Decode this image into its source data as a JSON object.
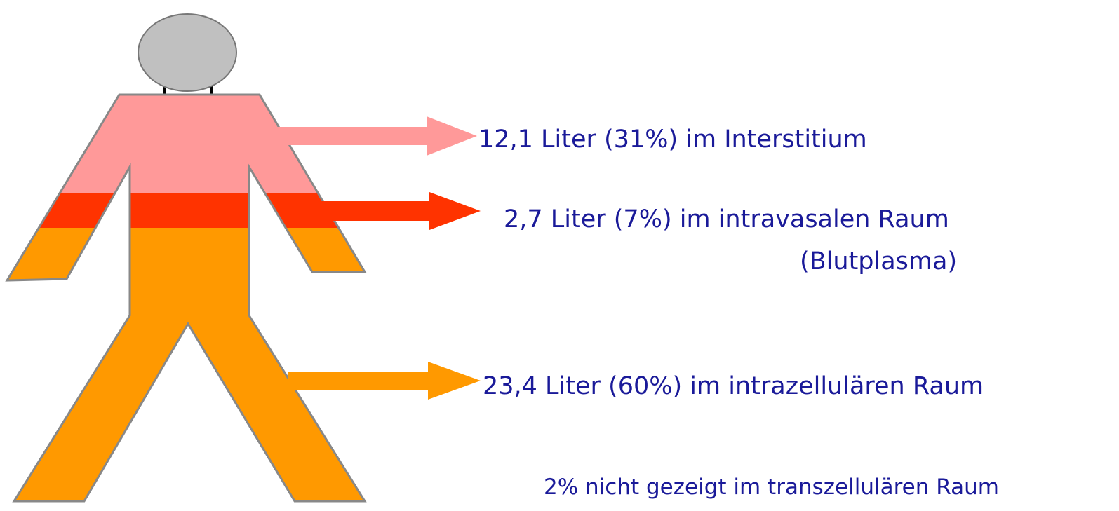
{
  "compartments": [
    {
      "label": "12,1 Liter (31%) im Interstitium"
    },
    {
      "label": "2,7 Liter (7%) im intravasalen Raum",
      "sublabel": "(Blutplasma)"
    },
    {
      "label": "23,4 Liter (60%) im intrazellulären Raum"
    }
  ],
  "note": "2% nicht gezeigt im transzellulären Raum"
}
